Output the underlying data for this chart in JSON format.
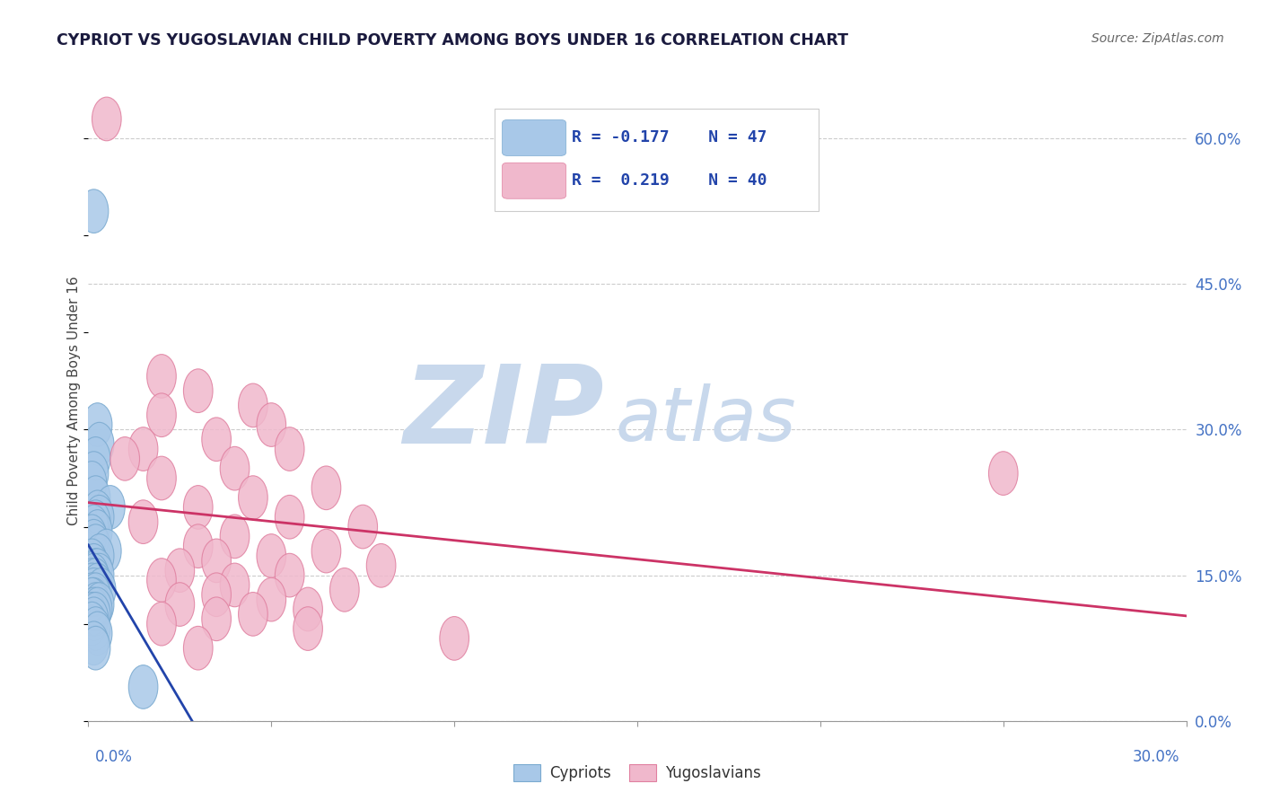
{
  "title": "CYPRIOT VS YUGOSLAVIAN CHILD POVERTY AMONG BOYS UNDER 16 CORRELATION CHART",
  "source": "Source: ZipAtlas.com",
  "ylabel": "Child Poverty Among Boys Under 16",
  "ytick_labels": [
    "0.0%",
    "15.0%",
    "30.0%",
    "45.0%",
    "60.0%"
  ],
  "ytick_values": [
    0,
    15,
    30,
    45,
    60
  ],
  "xlim": [
    0,
    30
  ],
  "ylim": [
    0,
    66
  ],
  "legend_r_blue": "R = -0.177",
  "legend_n_blue": "N = 47",
  "legend_r_pink": "R =  0.219",
  "legend_n_pink": "N = 40",
  "color_blue": "#a8c8e8",
  "color_blue_edge": "#7aaad0",
  "color_pink": "#f0b8cc",
  "color_pink_edge": "#e080a0",
  "line_color_blue": "#2244aa",
  "line_color_pink": "#cc3366",
  "legend_text_color": "#2244aa",
  "watermark_color": "#c8d8ec",
  "blue_points": [
    [
      0.15,
      52.5
    ],
    [
      0.25,
      30.5
    ],
    [
      0.3,
      28.5
    ],
    [
      0.2,
      27.0
    ],
    [
      0.15,
      25.5
    ],
    [
      0.1,
      24.5
    ],
    [
      0.2,
      23.0
    ],
    [
      0.6,
      22.0
    ],
    [
      0.25,
      21.5
    ],
    [
      0.3,
      21.0
    ],
    [
      0.2,
      20.5
    ],
    [
      0.15,
      20.0
    ],
    [
      0.25,
      19.5
    ],
    [
      0.1,
      19.0
    ],
    [
      0.15,
      18.5
    ],
    [
      0.2,
      18.0
    ],
    [
      0.5,
      17.5
    ],
    [
      0.3,
      17.0
    ],
    [
      0.1,
      16.5
    ],
    [
      0.15,
      16.0
    ],
    [
      0.2,
      15.5
    ],
    [
      0.25,
      15.5
    ],
    [
      0.3,
      15.0
    ],
    [
      0.15,
      15.0
    ],
    [
      0.1,
      14.5
    ],
    [
      0.2,
      14.5
    ],
    [
      0.1,
      14.0
    ],
    [
      0.25,
      14.0
    ],
    [
      0.15,
      13.5
    ],
    [
      0.35,
      13.5
    ],
    [
      0.1,
      13.0
    ],
    [
      0.2,
      13.0
    ],
    [
      0.15,
      12.5
    ],
    [
      0.1,
      12.5
    ],
    [
      0.2,
      12.0
    ],
    [
      0.3,
      12.0
    ],
    [
      0.15,
      11.5
    ],
    [
      0.25,
      11.5
    ],
    [
      0.1,
      11.0
    ],
    [
      0.2,
      11.0
    ],
    [
      0.15,
      10.5
    ],
    [
      0.1,
      10.0
    ],
    [
      0.2,
      9.5
    ],
    [
      0.25,
      9.0
    ],
    [
      1.5,
      3.5
    ],
    [
      0.15,
      8.0
    ],
    [
      0.2,
      7.5
    ]
  ],
  "pink_points": [
    [
      0.5,
      62.0
    ],
    [
      2.0,
      35.5
    ],
    [
      3.0,
      34.0
    ],
    [
      4.5,
      32.5
    ],
    [
      2.0,
      31.5
    ],
    [
      5.0,
      30.5
    ],
    [
      3.5,
      29.0
    ],
    [
      1.5,
      28.0
    ],
    [
      5.5,
      28.0
    ],
    [
      1.0,
      27.0
    ],
    [
      4.0,
      26.0
    ],
    [
      2.0,
      25.0
    ],
    [
      6.5,
      24.0
    ],
    [
      4.5,
      23.0
    ],
    [
      3.0,
      22.0
    ],
    [
      5.5,
      21.0
    ],
    [
      1.5,
      20.5
    ],
    [
      7.5,
      20.0
    ],
    [
      4.0,
      19.0
    ],
    [
      3.0,
      18.0
    ],
    [
      6.5,
      17.5
    ],
    [
      5.0,
      17.0
    ],
    [
      3.5,
      16.5
    ],
    [
      8.0,
      16.0
    ],
    [
      2.5,
      15.5
    ],
    [
      5.5,
      15.0
    ],
    [
      2.0,
      14.5
    ],
    [
      4.0,
      14.0
    ],
    [
      7.0,
      13.5
    ],
    [
      3.5,
      13.0
    ],
    [
      5.0,
      12.5
    ],
    [
      2.5,
      12.0
    ],
    [
      6.0,
      11.5
    ],
    [
      4.5,
      11.0
    ],
    [
      3.5,
      10.5
    ],
    [
      2.0,
      10.0
    ],
    [
      6.0,
      9.5
    ],
    [
      25.0,
      25.5
    ],
    [
      10.0,
      8.5
    ],
    [
      3.0,
      7.5
    ]
  ]
}
